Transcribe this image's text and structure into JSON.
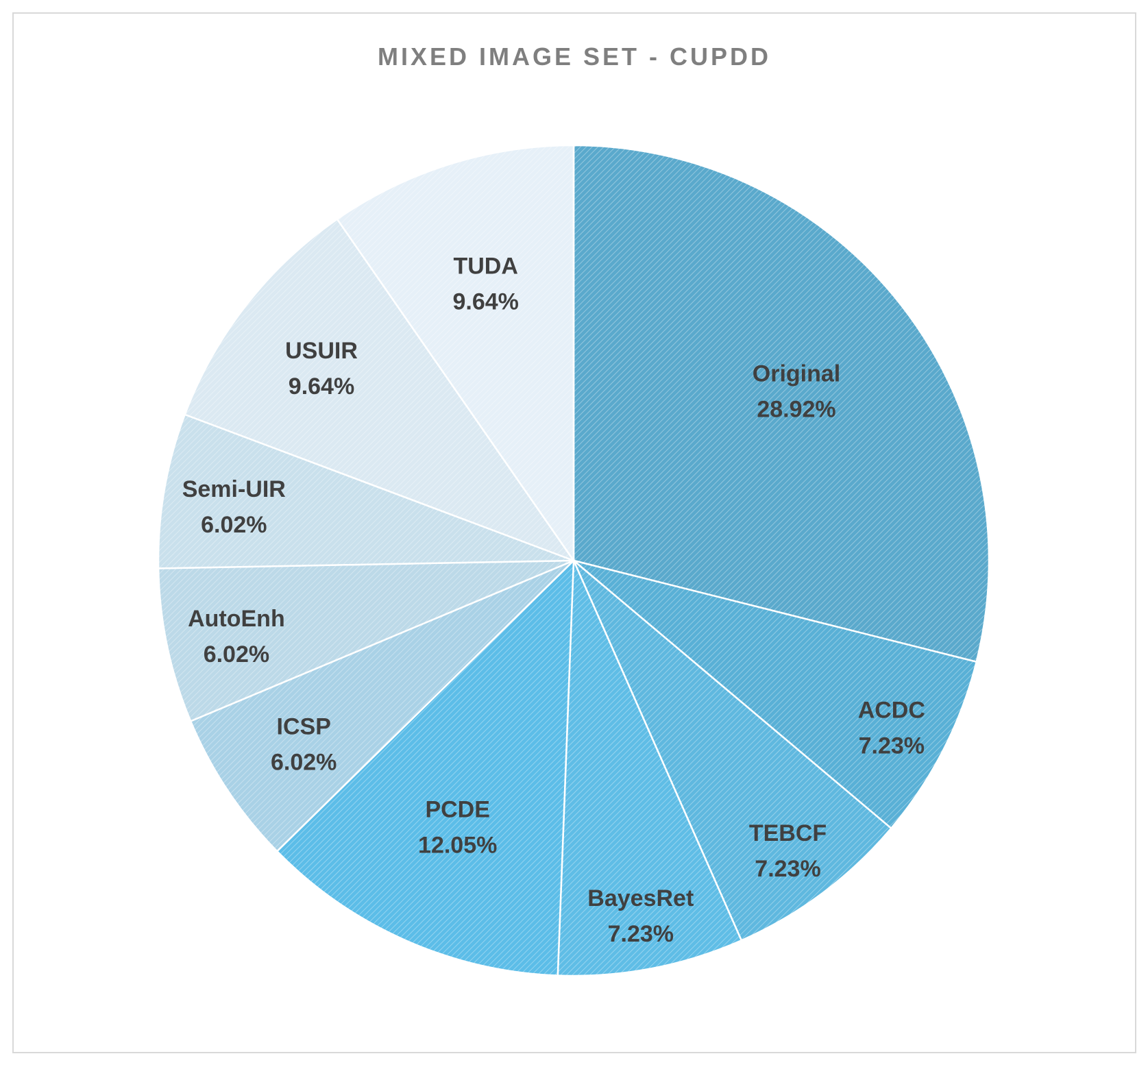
{
  "chart_data": {
    "type": "pie",
    "title": "MIXED IMAGE SET - CUPDD",
    "slices": [
      {
        "label": "Original",
        "value": 28.92,
        "display": "28.92%",
        "color": "#5aa9cc"
      },
      {
        "label": "ACDC",
        "value": 7.23,
        "display": "7.23%",
        "color": "#59b0d6"
      },
      {
        "label": "TEBCF",
        "value": 7.23,
        "display": "7.23%",
        "color": "#5fb8df"
      },
      {
        "label": "BayesRet",
        "value": 7.23,
        "display": "7.23%",
        "color": "#5fbde6"
      },
      {
        "label": "PCDE",
        "value": 12.05,
        "display": "12.05%",
        "color": "#5cbde8"
      },
      {
        "label": "ICSP",
        "value": 6.02,
        "display": "6.02%",
        "color": "#a9d1e6"
      },
      {
        "label": "AutoEnh",
        "value": 6.02,
        "display": "6.02%",
        "color": "#bcd9e8"
      },
      {
        "label": "Semi-UIR",
        "value": 6.02,
        "display": "6.02%",
        "color": "#c9e0ec"
      },
      {
        "label": "USUIR",
        "value": 9.64,
        "display": "9.64%",
        "color": "#dbe9f2"
      },
      {
        "label": "TUDA",
        "value": 9.64,
        "display": "9.64%",
        "color": "#e6f0f8"
      }
    ],
    "start_angle_deg": 0,
    "direction": "clockwise",
    "legend": "none",
    "data_labels": "category name and percentage"
  }
}
